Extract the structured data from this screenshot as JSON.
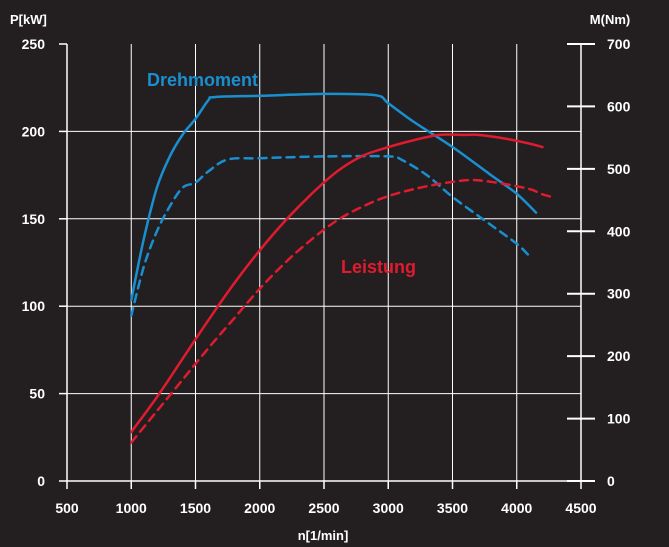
{
  "chart_data": {
    "type": "line",
    "xlabel": "n[1/min]",
    "ylabel_left": "P[kW]",
    "ylabel_right": "M(Nm)",
    "xlim": [
      500,
      4500
    ],
    "ylim_left": [
      0,
      250
    ],
    "ylim_right": [
      0,
      700
    ],
    "xticks": [
      500,
      1000,
      1500,
      2000,
      2500,
      3000,
      3500,
      4000,
      4500
    ],
    "yticks_left": [
      0,
      50,
      100,
      150,
      200,
      250
    ],
    "yticks_right": [
      0,
      100,
      200,
      300,
      400,
      500,
      600,
      700
    ],
    "grid": true,
    "colors": {
      "torque": "#1a8fd0",
      "power": "#e01b2f",
      "background": "#231f20",
      "grid": "#ffffff"
    },
    "annotations": [
      {
        "text": "Drehmoment",
        "color": "#1a8fd0"
      },
      {
        "text": "Leistung",
        "color": "#e01b2f"
      }
    ],
    "series": [
      {
        "axis": "right",
        "color": "#1a8fd0",
        "style": "solid",
        "points": [
          [
            1000,
            290
          ],
          [
            1100,
            390
          ],
          [
            1200,
            470
          ],
          [
            1300,
            520
          ],
          [
            1400,
            555
          ],
          [
            1500,
            580
          ],
          [
            1600,
            610
          ],
          [
            1650,
            615
          ],
          [
            2000,
            617
          ],
          [
            2500,
            620
          ],
          [
            2900,
            618
          ],
          [
            3000,
            605
          ],
          [
            3200,
            575
          ],
          [
            3500,
            535
          ],
          [
            3800,
            490
          ],
          [
            4000,
            460
          ],
          [
            4150,
            430
          ]
        ]
      },
      {
        "axis": "right",
        "color": "#1a8fd0",
        "style": "dashed",
        "points": [
          [
            1000,
            265
          ],
          [
            1100,
            345
          ],
          [
            1200,
            400
          ],
          [
            1300,
            440
          ],
          [
            1400,
            470
          ],
          [
            1500,
            478
          ],
          [
            1600,
            496
          ],
          [
            1750,
            515
          ],
          [
            2000,
            517
          ],
          [
            2500,
            520
          ],
          [
            3000,
            520
          ],
          [
            3100,
            515
          ],
          [
            3300,
            490
          ],
          [
            3500,
            455
          ],
          [
            3800,
            410
          ],
          [
            4000,
            380
          ],
          [
            4100,
            360
          ]
        ]
      },
      {
        "axis": "left",
        "color": "#e01b2f",
        "style": "solid",
        "points": [
          [
            1000,
            28
          ],
          [
            1200,
            48
          ],
          [
            1400,
            70
          ],
          [
            1600,
            92
          ],
          [
            1800,
            113
          ],
          [
            2000,
            132
          ],
          [
            2200,
            149
          ],
          [
            2400,
            164
          ],
          [
            2600,
            177
          ],
          [
            2800,
            186
          ],
          [
            3000,
            191
          ],
          [
            3200,
            195
          ],
          [
            3400,
            198
          ],
          [
            3600,
            198
          ],
          [
            3700,
            198
          ],
          [
            3900,
            196
          ],
          [
            4100,
            193
          ],
          [
            4200,
            191
          ]
        ]
      },
      {
        "axis": "left",
        "color": "#e01b2f",
        "style": "dashed",
        "points": [
          [
            1000,
            22
          ],
          [
            1200,
            40
          ],
          [
            1400,
            58
          ],
          [
            1600,
            76
          ],
          [
            1800,
            93
          ],
          [
            2000,
            110
          ],
          [
            2200,
            125
          ],
          [
            2400,
            138
          ],
          [
            2600,
            149
          ],
          [
            2800,
            157
          ],
          [
            3000,
            163
          ],
          [
            3200,
            167
          ],
          [
            3400,
            170
          ],
          [
            3600,
            172
          ],
          [
            3700,
            172
          ],
          [
            3900,
            170
          ],
          [
            4100,
            167
          ],
          [
            4200,
            164
          ],
          [
            4300,
            162
          ]
        ]
      }
    ]
  }
}
